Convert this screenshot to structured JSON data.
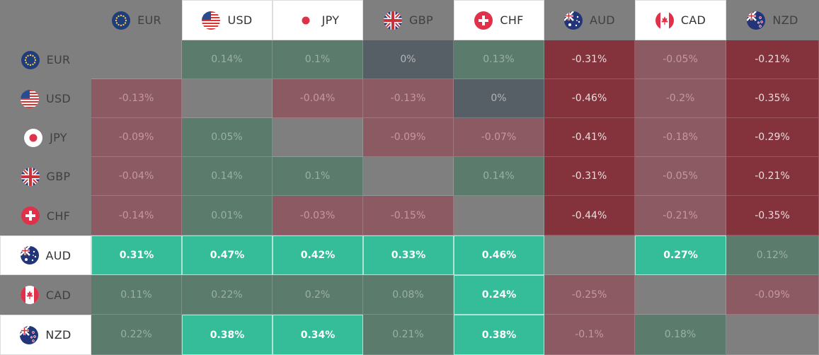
{
  "colors": {
    "background": "#7f7f7f",
    "strong_positive": "#35bd9a",
    "faint_positive": "#5b7b6d",
    "neutral": "#565e66",
    "faint_negative": "#8c5a62",
    "mid_negative": "#8a4750",
    "strong_negative": "#84333c"
  },
  "chart_data": {
    "type": "heatmap",
    "title": "",
    "x_categories": [
      "EUR",
      "USD",
      "JPY",
      "GBP",
      "CHF",
      "AUD",
      "CAD",
      "NZD"
    ],
    "y_categories": [
      "EUR",
      "USD",
      "JPY",
      "GBP",
      "CHF",
      "AUD",
      "CAD",
      "NZD"
    ],
    "highlighted_columns": [
      "USD",
      "JPY",
      "CHF",
      "CAD"
    ],
    "highlighted_rows": [
      "AUD",
      "NZD"
    ],
    "cells": [
      [
        null,
        "0.14%",
        "0.1%",
        "0%",
        "0.13%",
        "-0.31%",
        "-0.05%",
        "-0.21%"
      ],
      [
        "-0.13%",
        null,
        "-0.04%",
        "-0.13%",
        "0%",
        "-0.46%",
        "-0.2%",
        "-0.35%"
      ],
      [
        "-0.09%",
        "0.05%",
        null,
        "-0.09%",
        "-0.07%",
        "-0.41%",
        "-0.18%",
        "-0.29%"
      ],
      [
        "-0.04%",
        "0.14%",
        "0.1%",
        null,
        "0.14%",
        "-0.31%",
        "-0.05%",
        "-0.21%"
      ],
      [
        "-0.14%",
        "0.01%",
        "-0.03%",
        "-0.15%",
        null,
        "-0.44%",
        "-0.21%",
        "-0.35%"
      ],
      [
        "0.31%",
        "0.47%",
        "0.42%",
        "0.33%",
        "0.46%",
        null,
        "0.27%",
        "0.12%"
      ],
      [
        "0.11%",
        "0.22%",
        "0.2%",
        "0.08%",
        "0.24%",
        "-0.25%",
        null,
        "-0.09%"
      ],
      [
        "0.22%",
        "0.38%",
        "0.34%",
        "0.21%",
        "0.38%",
        "-0.1%",
        "0.18%",
        null
      ]
    ],
    "strong_cells": [
      [
        5,
        0
      ],
      [
        5,
        1
      ],
      [
        5,
        2
      ],
      [
        5,
        3
      ],
      [
        5,
        4
      ],
      [
        5,
        6
      ],
      [
        6,
        4
      ],
      [
        7,
        1
      ],
      [
        7,
        2
      ],
      [
        7,
        4
      ]
    ]
  }
}
